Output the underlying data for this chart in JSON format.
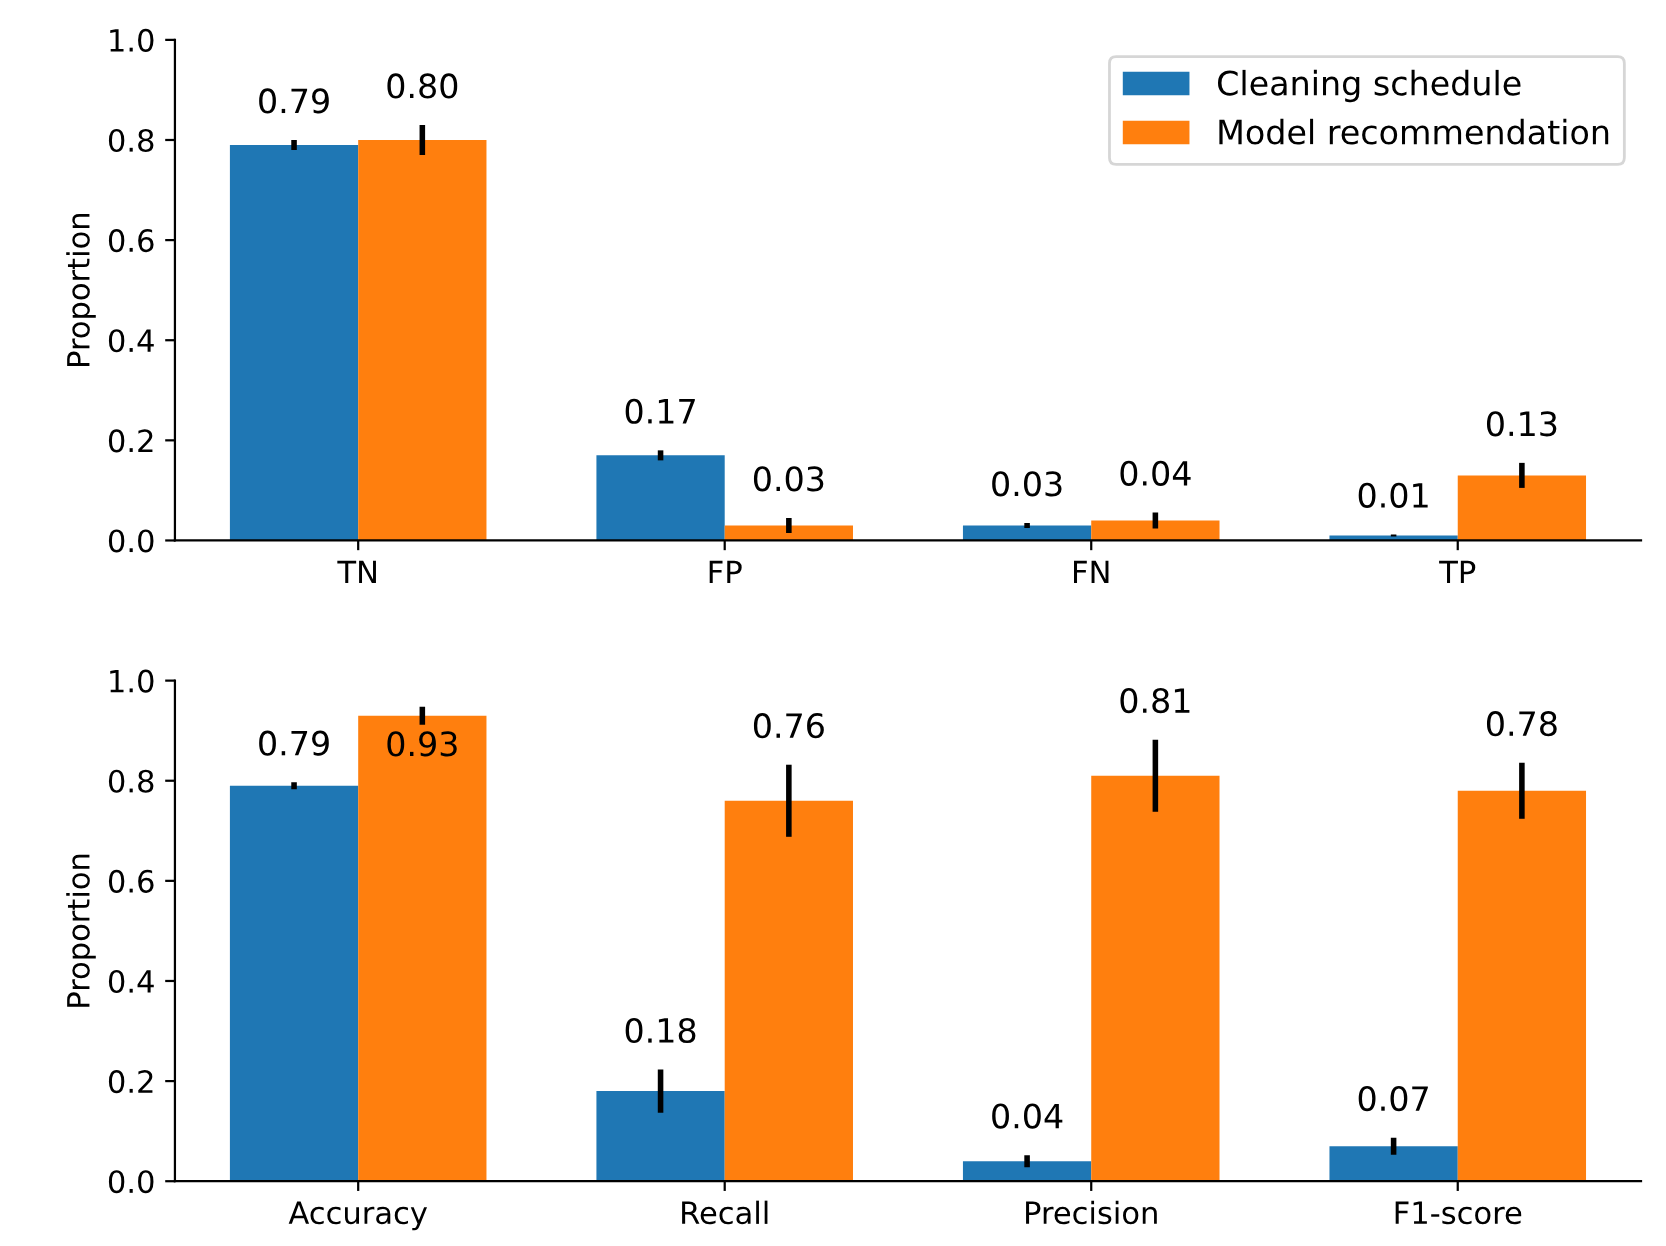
{
  "chart_data": [
    {
      "type": "bar",
      "ylabel": "Proportion",
      "categories": [
        "TN",
        "FP",
        "FN",
        "TP"
      ],
      "ylim": [
        0,
        1.0
      ],
      "yticks": [
        {
          "value": 0,
          "label": "0.0"
        },
        {
          "value": 0.2,
          "label": "0.2"
        },
        {
          "value": 0.4,
          "label": "0.4"
        },
        {
          "value": 0.6,
          "label": "0.6"
        },
        {
          "value": 0.8,
          "label": "0.8"
        },
        {
          "value": 1,
          "label": "1.0"
        }
      ],
      "legend": "top right",
      "grid": false,
      "series": [
        {
          "name": "Cleaning schedule",
          "color": "#1f77b4",
          "values": [
            0.79,
            0.17,
            0.03,
            0.01
          ],
          "errors": [
            0.01,
            0.01,
            0.005,
            0.002
          ],
          "value_labels": [
            "0.79",
            "0.17",
            "0.03",
            "0.01"
          ]
        },
        {
          "name": "Model recommendation",
          "color": "#ff7f0e",
          "values": [
            0.8,
            0.03,
            0.04,
            0.13
          ],
          "errors": [
            0.03,
            0.015,
            0.016,
            0.025
          ],
          "value_labels": [
            "0.80",
            "0.03",
            "0.04",
            "0.13"
          ]
        }
      ]
    },
    {
      "type": "bar",
      "ylabel": "Proportion",
      "categories": [
        "Accuracy",
        "Recall",
        "Precision",
        "F1-score"
      ],
      "ylim": [
        0,
        1.0
      ],
      "yticks": [
        {
          "value": 0,
          "label": "0.0"
        },
        {
          "value": 0.2,
          "label": "0.2"
        },
        {
          "value": 0.4,
          "label": "0.4"
        },
        {
          "value": 0.6,
          "label": "0.6"
        },
        {
          "value": 0.8,
          "label": "0.8"
        },
        {
          "value": 1,
          "label": "1.0"
        }
      ],
      "grid": false,
      "series": [
        {
          "color": "#1f77b4",
          "values": [
            0.79,
            0.18,
            0.04,
            0.07
          ],
          "errors": [
            0.007,
            0.043,
            0.012,
            0.017
          ],
          "value_labels": [
            "0.79",
            "0.18",
            "0.04",
            "0.07"
          ]
        },
        {
          "color": "#ff7f0e",
          "values": [
            0.93,
            0.76,
            0.81,
            0.78
          ],
          "errors": [
            0.018,
            0.072,
            0.072,
            0.056
          ],
          "value_labels": [
            "0.93",
            "0.76",
            "0.81",
            "0.78"
          ]
        }
      ]
    }
  ]
}
